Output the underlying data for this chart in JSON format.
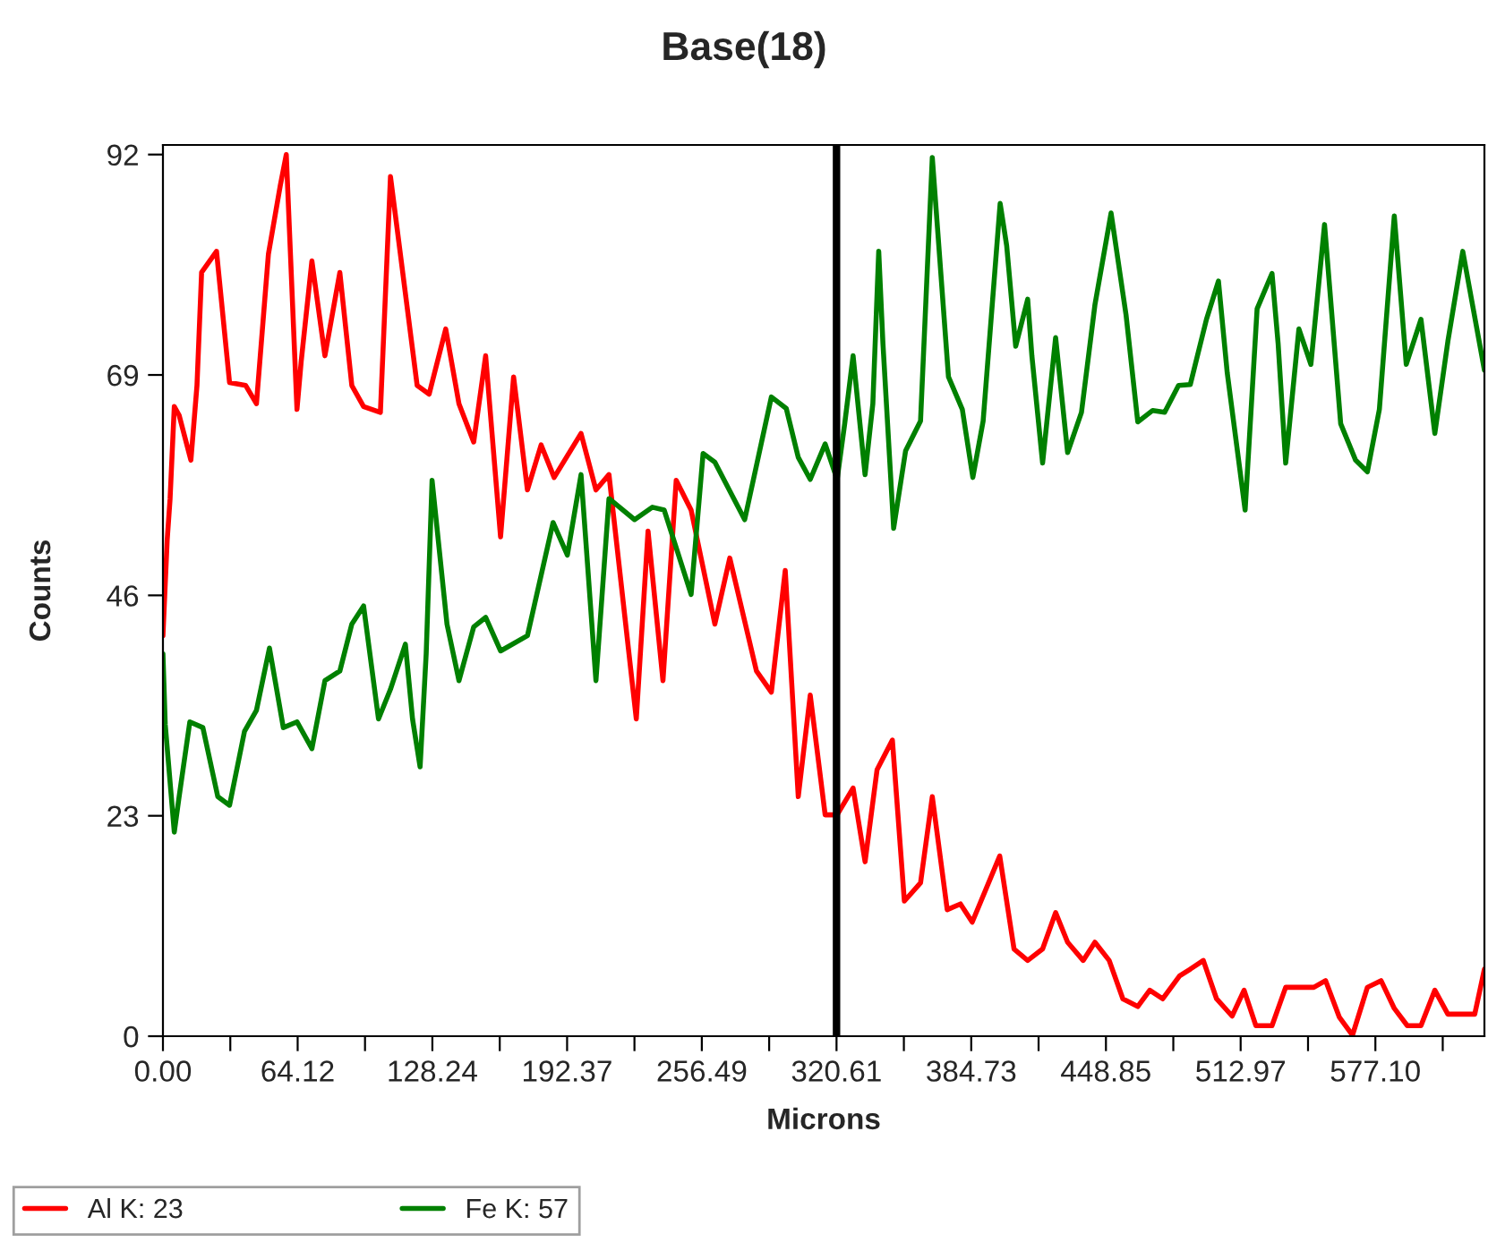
{
  "chart_data": {
    "type": "line",
    "title": "Base(18)",
    "xlabel": "Microns",
    "ylabel": "Counts",
    "xlim": [
      0,
      629
    ],
    "ylim": [
      0,
      93
    ],
    "xticks": [
      {
        "value": 0,
        "label": "0.00"
      },
      {
        "value": 32.06,
        "label": null
      },
      {
        "value": 64.12,
        "label": "64.12"
      },
      {
        "value": 96.18,
        "label": null
      },
      {
        "value": 128.24,
        "label": "128.24"
      },
      {
        "value": 160.31,
        "label": null
      },
      {
        "value": 192.37,
        "label": "192.37"
      },
      {
        "value": 224.43,
        "label": null
      },
      {
        "value": 256.49,
        "label": "256.49"
      },
      {
        "value": 288.55,
        "label": null
      },
      {
        "value": 320.61,
        "label": "320.61"
      },
      {
        "value": 352.67,
        "label": null
      },
      {
        "value": 384.73,
        "label": "384.73"
      },
      {
        "value": 416.79,
        "label": null
      },
      {
        "value": 448.85,
        "label": "448.85"
      },
      {
        "value": 480.92,
        "label": null
      },
      {
        "value": 512.97,
        "label": "512.97"
      },
      {
        "value": 545.04,
        "label": null
      },
      {
        "value": 577.1,
        "label": "577.10"
      },
      {
        "value": 609.16,
        "label": null
      }
    ],
    "yticks": [
      0,
      23,
      46,
      69,
      92
    ],
    "grid": false,
    "legend": "bottom",
    "marker": "none",
    "line_style": "solid",
    "ref_lines": [
      {
        "axis": "x",
        "value": 320.61,
        "color": "#000000"
      }
    ],
    "series": [
      {
        "name": "Al K: 23",
        "color": "#ff0000",
        "x": [
          0,
          2,
          3.4,
          5.4,
          7.7,
          13.3,
          16.2,
          18.4,
          25.5,
          31.7,
          39.4,
          44.5,
          50.2,
          55.8,
          58.7,
          63.8,
          65.8,
          70.9,
          77.1,
          84.2,
          89.9,
          95.5,
          103.5,
          108.3,
          121.0,
          126.7,
          134.6,
          140.9,
          147.9,
          153.6,
          160.7,
          166.9,
          173.5,
          180.0,
          186.2,
          199.0,
          206.1,
          212.3,
          225.3,
          230.9,
          238.0,
          244.3,
          251.4,
          262.7,
          269.8,
          282.5,
          289.6,
          296.2,
          302.4,
          308.1,
          315.2,
          320.9,
          328.5,
          334.2,
          339.9,
          347.2,
          352.9,
          360.6,
          366.2,
          373.3,
          379.6,
          385.2,
          398.3,
          405.1,
          411.6,
          418.7,
          424.9,
          430.6,
          438.0,
          443.6,
          450.4,
          456.9,
          464.0,
          469.7,
          475.9,
          483.9,
          489.0,
          495.2,
          501.5,
          508.9,
          514.6,
          520.2,
          527.9,
          534.4,
          547.8,
          553.4,
          559.9,
          566.2,
          573.3,
          579.8,
          586.1,
          592.3,
          598.8,
          605.4,
          611.6,
          624.4,
          629.0
        ],
        "values": [
          41.8,
          51.7,
          56.1,
          65.7,
          64.8,
          60.1,
          67.9,
          79.7,
          81.9,
          68.2,
          67.9,
          66.0,
          81.6,
          88.7,
          92.0,
          65.4,
          70.4,
          80.9,
          71.0,
          79.7,
          67.9,
          65.7,
          65.1,
          89.7,
          67.9,
          67.0,
          73.8,
          66.0,
          62.0,
          71.0,
          52.1,
          68.8,
          57.0,
          61.7,
          58.3,
          62.9,
          57.0,
          58.6,
          33.1,
          52.7,
          37.1,
          58.0,
          54.9,
          43.0,
          49.9,
          38.1,
          35.9,
          48.6,
          25.0,
          35.6,
          23.1,
          23.1,
          25.9,
          18.2,
          27.8,
          30.9,
          14.1,
          16.0,
          25.0,
          13.2,
          13.8,
          11.9,
          18.8,
          9.1,
          7.9,
          9.1,
          12.9,
          9.8,
          7.9,
          9.8,
          7.9,
          3.9,
          3.1,
          4.8,
          3.9,
          6.3,
          7.0,
          7.9,
          3.9,
          2.1,
          4.8,
          1.1,
          1.1,
          5.1,
          5.1,
          5.8,
          2.0,
          0.1,
          5.1,
          5.8,
          2.9,
          1.1,
          1.1,
          4.8,
          2.3,
          2.3,
          7.0
        ]
      },
      {
        "name": "Fe K: 57",
        "color": "#008000",
        "x": [
          0,
          1.1,
          5.4,
          7.7,
          12.8,
          19.0,
          26.1,
          31.7,
          38.8,
          44.5,
          50.7,
          57.3,
          63.8,
          70.9,
          77.1,
          84.2,
          89.9,
          95.5,
          102.6,
          108.3,
          115.4,
          118.8,
          122.4,
          125.3,
          128.1,
          135.2,
          140.9,
          147.9,
          153.6,
          160.7,
          173.5,
          185.7,
          192.5,
          199.0,
          206.1,
          212.3,
          224.5,
          233.0,
          238.6,
          251.4,
          257.1,
          262.7,
          276.9,
          289.6,
          296.7,
          302.4,
          308.1,
          315.2,
          320.9,
          324.5,
          328.5,
          334.2,
          337.9,
          340.7,
          342.7,
          347.8,
          353.5,
          360.6,
          366.2,
          373.9,
          380.5,
          385.5,
          390.4,
          398.5,
          401.6,
          405.9,
          411.6,
          413.6,
          418.7,
          424.9,
          430.6,
          437.2,
          443.6,
          451.3,
          458.4,
          464.0,
          471.1,
          476.8,
          483.4,
          489.0,
          496.7,
          502.4,
          506.6,
          515.1,
          520.8,
          527.9,
          530.8,
          534.4,
          540.7,
          546.4,
          552.9,
          560.6,
          567.7,
          573.3,
          579.0,
          586.1,
          591.8,
          598.8,
          605.4,
          611.6,
          618.7,
          629.0
        ],
        "values": [
          39.9,
          32.5,
          21.3,
          25.0,
          32.8,
          32.2,
          25.0,
          24.1,
          31.8,
          34.0,
          40.5,
          32.2,
          32.8,
          30.0,
          37.1,
          38.1,
          43.0,
          44.9,
          33.1,
          36.2,
          40.9,
          33.1,
          28.1,
          39.9,
          58.0,
          43.0,
          37.1,
          42.7,
          43.7,
          40.2,
          41.8,
          53.6,
          50.2,
          58.6,
          37.1,
          56.1,
          53.9,
          55.2,
          54.9,
          46.1,
          60.8,
          59.9,
          53.9,
          66.7,
          65.5,
          60.4,
          58.1,
          61.8,
          58.1,
          63.9,
          71.0,
          58.6,
          66.0,
          81.9,
          72.3,
          53.0,
          61.1,
          64.2,
          91.7,
          68.8,
          65.4,
          58.3,
          64.2,
          86.9,
          82.5,
          72.0,
          76.9,
          71.0,
          59.8,
          72.9,
          60.9,
          65.1,
          76.3,
          85.9,
          75.3,
          64.1,
          65.3,
          65.1,
          67.9,
          68.0,
          74.8,
          78.8,
          69.2,
          54.9,
          75.9,
          79.6,
          72.3,
          59.8,
          73.8,
          70.1,
          84.7,
          63.9,
          60.1,
          58.9,
          65.4,
          85.6,
          70.1,
          74.8,
          62.9,
          72.5,
          81.9,
          69.5
        ]
      }
    ]
  }
}
